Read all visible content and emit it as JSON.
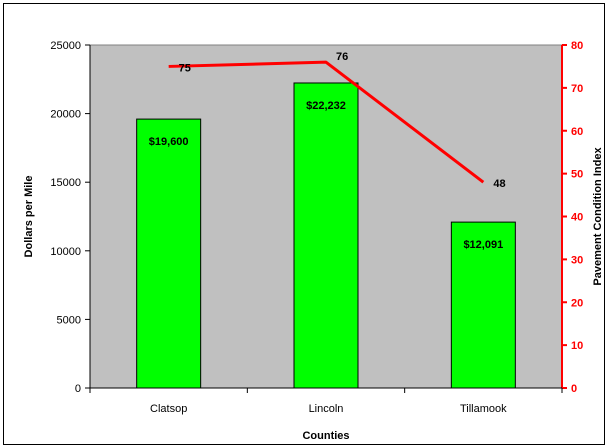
{
  "chart_data": {
    "type": "bar",
    "categories": [
      "Clatsop",
      "Lincoln",
      "Tillamook"
    ],
    "series": [
      {
        "type": "bar",
        "values": [
          19600,
          22232,
          12091
        ],
        "labels": [
          "$19,600",
          "$22,232",
          "$12,091"
        ],
        "color": "#00ff00",
        "axis": "left"
      },
      {
        "type": "line",
        "values": [
          75,
          76,
          48
        ],
        "labels": [
          "75",
          "76",
          "48"
        ],
        "color": "#ff0000",
        "axis": "right"
      }
    ],
    "xlabel": "Counties",
    "ylabel": "Dollars per Mile",
    "y2label": "Pavement Condition Index",
    "ylim": [
      0,
      25000
    ],
    "y2lim": [
      0,
      80
    ],
    "yticks": [
      "0",
      "5000",
      "10000",
      "15000",
      "20000",
      "25000"
    ],
    "y2ticks": [
      "0",
      "10",
      "20",
      "30",
      "40",
      "50",
      "60",
      "70",
      "80"
    ],
    "plot_background": "#c0c0c0",
    "y2_axis_color": "#ff0000",
    "grid": false,
    "legend": "none"
  }
}
